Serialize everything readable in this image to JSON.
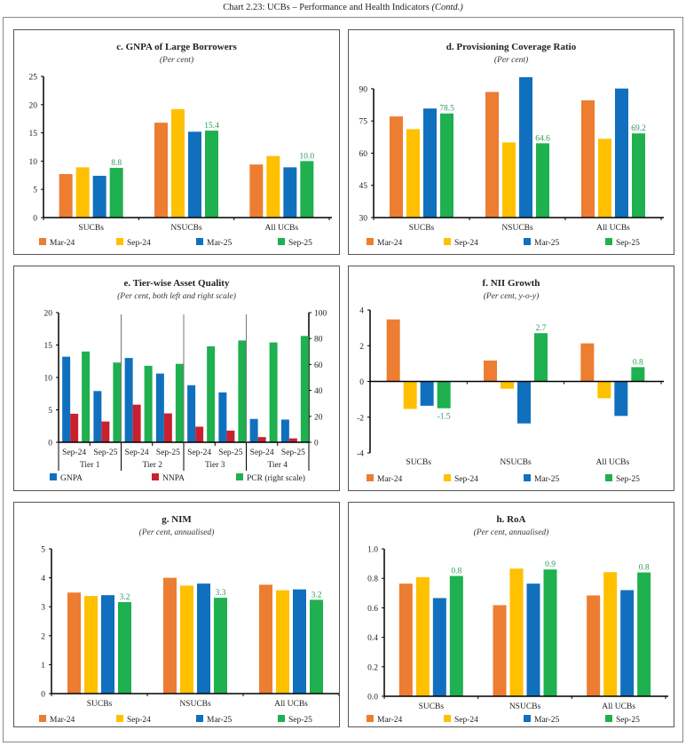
{
  "title": "Chart 2.23: UCBs – Performance and Health Indicators",
  "title_suffix": "(Contd.)",
  "colors": {
    "Mar-24": "#ED7D31",
    "Sep-24": "#FFC000",
    "Mar-25": "#1070BE",
    "Sep-25": "#1FB04F",
    "GNPA": "#1070BE",
    "NNPA": "#C9202F",
    "PCR": "#1FB04F",
    "label": "#2E9A5A"
  },
  "chart_data": [
    {
      "id": "c",
      "type": "bar",
      "title": "c. GNPA of Large Borrowers",
      "subtitle": "(Per cent)",
      "categories": [
        "SUCBs",
        "NSUCBs",
        "All UCBs"
      ],
      "ylim": [
        0,
        25
      ],
      "yticks": [
        0,
        5,
        10,
        15,
        20,
        25
      ],
      "grid": false,
      "legend": "bottom",
      "series": [
        {
          "name": "Mar-24",
          "values": [
            7.7,
            16.8,
            9.4
          ]
        },
        {
          "name": "Sep-24",
          "values": [
            8.9,
            19.2,
            10.9
          ]
        },
        {
          "name": "Mar-25",
          "values": [
            7.4,
            15.2,
            8.9
          ]
        },
        {
          "name": "Sep-25",
          "values": [
            8.8,
            15.4,
            10.0
          ],
          "data_labels": [
            "8.8",
            "15.4",
            "10.0"
          ]
        }
      ]
    },
    {
      "id": "d",
      "type": "bar",
      "title": "d. Provisioning Coverage Ratio",
      "subtitle": "(Per cent)",
      "categories": [
        "SUCBs",
        "NSUCBs",
        "All UCBs"
      ],
      "ylim": [
        30,
        97
      ],
      "yticks": [
        30,
        45,
        60,
        75,
        90
      ],
      "grid": false,
      "legend": "bottom",
      "series": [
        {
          "name": "Mar-24",
          "values": [
            77.1,
            88.5,
            84.6
          ]
        },
        {
          "name": "Sep-24",
          "values": [
            71.2,
            65.0,
            66.7
          ]
        },
        {
          "name": "Mar-25",
          "values": [
            80.8,
            95.4,
            90.1
          ]
        },
        {
          "name": "Sep-25",
          "values": [
            78.5,
            64.6,
            69.2
          ],
          "data_labels": [
            "78.5",
            "64.6",
            "69.2"
          ]
        }
      ]
    },
    {
      "id": "e",
      "type": "bar",
      "title": "e. Tier-wise Asset Quality",
      "subtitle": "(Per cent, both left and right scale)",
      "groups": [
        "Tier 1",
        "Tier 2",
        "Tier 3",
        "Tier 4"
      ],
      "categories": [
        "Sep-24",
        "Sep-25",
        "Sep-24",
        "Sep-25",
        "Sep-24",
        "Sep-25",
        "Sep-24",
        "Sep-25"
      ],
      "ylim": [
        0,
        20
      ],
      "yticks": [
        0,
        5,
        10,
        15,
        20
      ],
      "y2lim": [
        0,
        100
      ],
      "y2ticks": [
        0,
        20,
        40,
        60,
        80,
        100
      ],
      "grid": false,
      "legend": "bottom",
      "series": [
        {
          "name": "GNPA",
          "axis": "left",
          "values": [
            13.2,
            7.9,
            13.0,
            10.6,
            8.8,
            7.7,
            3.6,
            3.5
          ]
        },
        {
          "name": "NNPA",
          "axis": "left",
          "values": [
            4.4,
            3.2,
            5.8,
            4.45,
            2.4,
            1.8,
            0.8,
            0.6
          ]
        },
        {
          "name": "PCR (right scale)",
          "color_key": "PCR",
          "axis": "right",
          "values": [
            70,
            61.5,
            59,
            60.5,
            74,
            78.5,
            77,
            82
          ]
        }
      ]
    },
    {
      "id": "f",
      "type": "bar",
      "title": "f. NII Growth",
      "subtitle": "(Per cent, y-o-y)",
      "categories": [
        "SUCBs",
        "NSUCBs",
        "All UCBs"
      ],
      "ylim": [
        -4,
        4
      ],
      "yticks": [
        -4,
        -2,
        0,
        2,
        4
      ],
      "grid": false,
      "legend": "bottom",
      "series": [
        {
          "name": "Mar-24",
          "values": [
            3.47,
            1.17,
            2.13
          ]
        },
        {
          "name": "Sep-24",
          "values": [
            -1.54,
            -0.41,
            -0.94
          ]
        },
        {
          "name": "Mar-25",
          "values": [
            -1.36,
            -2.35,
            -1.93
          ]
        },
        {
          "name": "Sep-25",
          "values": [
            -1.5,
            2.7,
            0.8
          ],
          "data_labels": [
            "-1.5",
            "2.7",
            "0.8"
          ]
        }
      ]
    },
    {
      "id": "g",
      "type": "bar",
      "title": "g. NIM",
      "subtitle": "(Per cent, annualised)",
      "categories": [
        "SUCBs",
        "NSUCBs",
        "All UCBs"
      ],
      "ylim": [
        0,
        5
      ],
      "yticks": [
        0,
        1,
        2,
        3,
        4,
        5
      ],
      "grid": false,
      "legend": "bottom",
      "series": [
        {
          "name": "Mar-24",
          "values": [
            3.49,
            4.0,
            3.76
          ]
        },
        {
          "name": "Sep-24",
          "values": [
            3.37,
            3.73,
            3.57
          ]
        },
        {
          "name": "Mar-25",
          "values": [
            3.4,
            3.8,
            3.6
          ]
        },
        {
          "name": "Sep-25",
          "values": [
            3.16,
            3.31,
            3.24
          ],
          "data_labels": [
            "3.2",
            "3.3",
            "3.2"
          ]
        }
      ]
    },
    {
      "id": "h",
      "type": "bar",
      "title": "h. RoA",
      "subtitle": "(Per cent, annualised)",
      "categories": [
        "SUCBs",
        "NSUCBs",
        "All UCBs"
      ],
      "ylim": [
        0,
        1
      ],
      "yticks": [
        0,
        0.2,
        0.4,
        0.6,
        0.8,
        1.0
      ],
      "ytick_labels": [
        "0.0",
        "0.2",
        "0.4",
        "0.6",
        "0.8",
        "1.0"
      ],
      "grid": false,
      "legend": "bottom",
      "series": [
        {
          "name": "Mar-24",
          "values": [
            0.764,
            0.618,
            0.684
          ]
        },
        {
          "name": "Sep-24",
          "values": [
            0.808,
            0.866,
            0.842
          ]
        },
        {
          "name": "Mar-25",
          "values": [
            0.666,
            0.764,
            0.72
          ]
        },
        {
          "name": "Sep-25",
          "values": [
            0.816,
            0.86,
            0.84
          ],
          "data_labels": [
            "0.8",
            "0.9",
            "0.8"
          ]
        }
      ]
    }
  ]
}
